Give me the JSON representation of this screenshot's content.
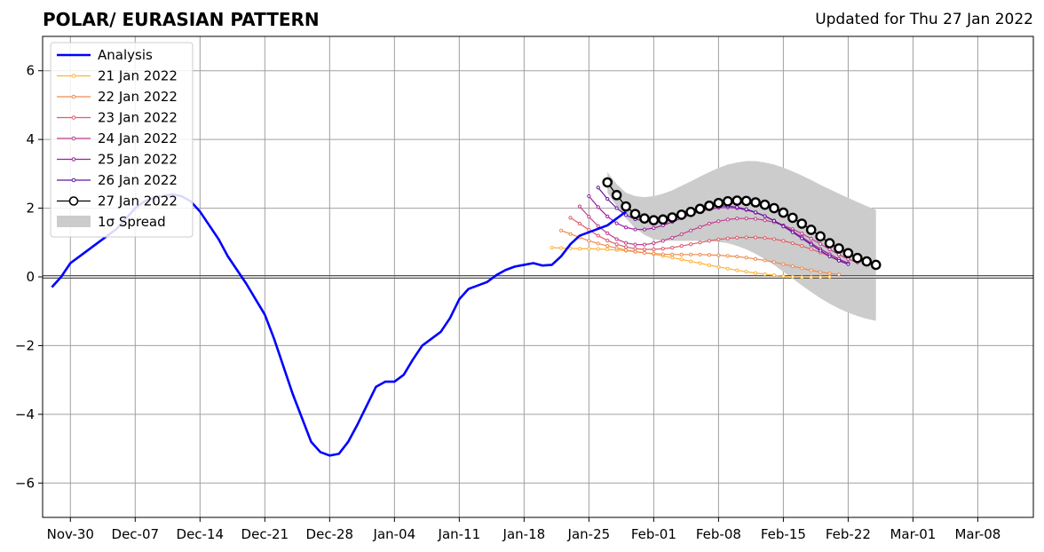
{
  "header": {
    "title": "POLAR/ EURASIAN  PATTERN",
    "updated": "Updated for Thu 27 Jan 2022"
  },
  "chart_data": {
    "type": "line",
    "title": "POLAR/ EURASIAN  PATTERN",
    "xlabel": "",
    "ylabel": "",
    "xlim": [
      "2021-11-27",
      "2022-03-14"
    ],
    "ylim": [
      -7,
      7
    ],
    "grid": true,
    "legend_position": "top-left",
    "x_ticks": [
      "Nov-30",
      "Dec-07",
      "Dec-14",
      "Dec-21",
      "Dec-28",
      "Jan-04",
      "Jan-11",
      "Jan-18",
      "Jan-25",
      "Feb-01",
      "Feb-08",
      "Feb-15",
      "Feb-22",
      "Mar-01",
      "Mar-08"
    ],
    "x_tick_dates": [
      "2021-11-30",
      "2021-12-07",
      "2021-12-14",
      "2021-12-21",
      "2021-12-28",
      "2022-01-04",
      "2022-01-11",
      "2022-01-18",
      "2022-01-25",
      "2022-02-01",
      "2022-02-08",
      "2022-02-15",
      "2022-02-22",
      "2022-03-01",
      "2022-03-08"
    ],
    "y_ticks": [
      -6,
      -4,
      -2,
      0,
      2,
      4,
      6
    ],
    "analysis": {
      "name": "Analysis",
      "color": "#0000ff",
      "start": "2021-11-28",
      "values": [
        -0.3,
        0.0,
        0.4,
        0.6,
        0.8,
        1.0,
        1.2,
        1.4,
        1.7,
        2.0,
        2.2,
        2.3,
        2.35,
        2.4,
        2.35,
        2.2,
        1.9,
        1.5,
        1.1,
        0.6,
        0.2,
        -0.2,
        -0.65,
        -1.1,
        -1.8,
        -2.6,
        -3.4,
        -4.1,
        -4.8,
        -5.1,
        -5.2,
        -5.15,
        -4.8,
        -4.3,
        -3.75,
        -3.2,
        -3.05,
        -3.05,
        -2.85,
        -2.4,
        -2.0,
        -1.8,
        -1.6,
        -1.2,
        -0.65,
        -0.35,
        -0.25,
        -0.15,
        0.05,
        0.2,
        0.3,
        0.35,
        0.4,
        0.33,
        0.35,
        0.6,
        0.95,
        1.2,
        1.3,
        1.4,
        1.5,
        1.7,
        1.9
      ]
    },
    "forecasts": [
      {
        "name": "21 Jan 2022",
        "color": "#fdb438",
        "start": "2022-01-21",
        "values": [
          0.85,
          0.84,
          0.83,
          0.82,
          0.82,
          0.81,
          0.8,
          0.78,
          0.76,
          0.73,
          0.7,
          0.66,
          0.61,
          0.56,
          0.51,
          0.45,
          0.4,
          0.34,
          0.29,
          0.24,
          0.19,
          0.15,
          0.11,
          0.08,
          0.05,
          0.02,
          0.0,
          -0.01,
          -0.01,
          -0.01,
          0.0
        ]
      },
      {
        "name": "22 Jan 2022",
        "color": "#f08b4f",
        "start": "2022-01-22",
        "values": [
          1.35,
          1.25,
          1.15,
          1.05,
          0.97,
          0.9,
          0.84,
          0.78,
          0.74,
          0.7,
          0.68,
          0.66,
          0.65,
          0.65,
          0.65,
          0.65,
          0.64,
          0.63,
          0.61,
          0.59,
          0.56,
          0.52,
          0.48,
          0.43,
          0.37,
          0.31,
          0.25,
          0.19,
          0.14,
          0.1,
          0.07
        ]
      },
      {
        "name": "23 Jan 2022",
        "color": "#dd5e6a",
        "start": "2022-01-23",
        "values": [
          1.72,
          1.55,
          1.37,
          1.2,
          1.06,
          0.95,
          0.87,
          0.82,
          0.8,
          0.8,
          0.82,
          0.85,
          0.9,
          0.95,
          1.0,
          1.05,
          1.09,
          1.12,
          1.14,
          1.15,
          1.15,
          1.13,
          1.1,
          1.05,
          0.98,
          0.9,
          0.81,
          0.71,
          0.6,
          0.5,
          0.39
        ]
      },
      {
        "name": "24 Jan 2022",
        "color": "#bf3f8c",
        "start": "2022-01-24",
        "values": [
          2.05,
          1.75,
          1.48,
          1.27,
          1.1,
          0.99,
          0.94,
          0.94,
          0.98,
          1.05,
          1.14,
          1.24,
          1.35,
          1.45,
          1.55,
          1.62,
          1.67,
          1.7,
          1.7,
          1.69,
          1.65,
          1.59,
          1.5,
          1.39,
          1.26,
          1.11,
          0.96,
          0.8,
          0.65,
          0.52,
          0.42
        ]
      },
      {
        "name": "25 Jan 2022",
        "color": "#9a1fa3",
        "start": "2022-01-25",
        "values": [
          2.35,
          2.03,
          1.76,
          1.56,
          1.44,
          1.38,
          1.38,
          1.42,
          1.5,
          1.6,
          1.71,
          1.82,
          1.91,
          1.97,
          2.01,
          2.02,
          2.0,
          1.95,
          1.87,
          1.77,
          1.64,
          1.49,
          1.33,
          1.16,
          0.98,
          0.81,
          0.66,
          0.52,
          0.4
        ]
      },
      {
        "name": "26 Jan 2022",
        "color": "#62169e",
        "start": "2022-01-26",
        "values": [
          2.6,
          2.27,
          2.0,
          1.8,
          1.68,
          1.63,
          1.64,
          1.69,
          1.76,
          1.85,
          1.93,
          2.0,
          2.05,
          2.07,
          2.06,
          2.03,
          1.97,
          1.88,
          1.77,
          1.63,
          1.47,
          1.3,
          1.12,
          0.94,
          0.76,
          0.6,
          0.47,
          0.37
        ]
      },
      {
        "name": "27 Jan 2022",
        "color": "#000000",
        "start": "2022-01-27",
        "values": [
          2.75,
          2.38,
          2.05,
          1.83,
          1.7,
          1.65,
          1.67,
          1.73,
          1.81,
          1.89,
          1.98,
          2.07,
          2.15,
          2.2,
          2.22,
          2.21,
          2.17,
          2.1,
          2.0,
          1.87,
          1.72,
          1.55,
          1.37,
          1.18,
          0.98,
          0.83,
          0.69,
          0.55,
          0.45,
          0.35
        ]
      }
    ],
    "spread": {
      "name": "1σ Spread",
      "color": "#cccccc",
      "start": "2022-01-27",
      "upper": [
        3.05,
        2.7,
        2.45,
        2.35,
        2.32,
        2.35,
        2.42,
        2.52,
        2.65,
        2.78,
        2.92,
        3.05,
        3.17,
        3.27,
        3.33,
        3.37,
        3.37,
        3.33,
        3.27,
        3.18,
        3.07,
        2.95,
        2.82,
        2.68,
        2.55,
        2.42,
        2.3,
        2.18,
        2.06,
        1.95
      ],
      "lower": [
        2.45,
        2.05,
        1.7,
        1.42,
        1.22,
        1.1,
        1.05,
        1.05,
        1.05,
        1.05,
        1.05,
        1.05,
        1.02,
        0.98,
        0.9,
        0.8,
        0.67,
        0.52,
        0.35,
        0.15,
        -0.05,
        -0.25,
        -0.44,
        -0.62,
        -0.78,
        -0.92,
        -1.04,
        -1.14,
        -1.22,
        -1.28
      ]
    },
    "legend": [
      "Analysis",
      "21 Jan 2022",
      "22 Jan 2022",
      "23 Jan 2022",
      "24 Jan 2022",
      "25 Jan 2022",
      "26 Jan 2022",
      "27 Jan 2022",
      "1σ Spread"
    ]
  }
}
